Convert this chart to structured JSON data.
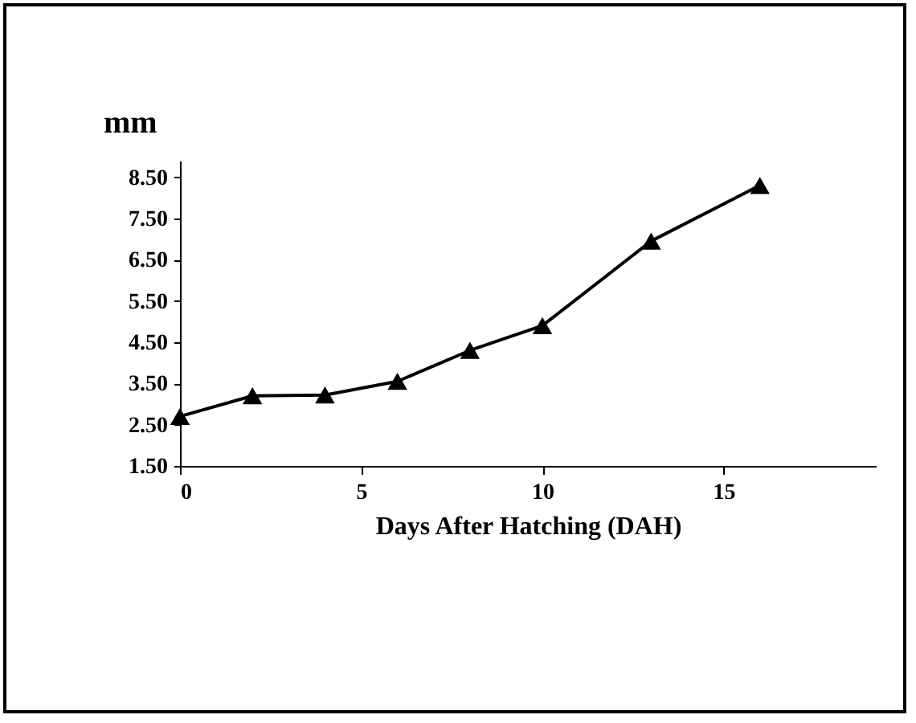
{
  "chart_data": {
    "type": "line",
    "ylabel": "mm",
    "xlabel": "Days After Hatching (DAH)",
    "x": [
      0,
      2,
      4,
      6,
      8,
      10,
      13,
      16
    ],
    "series": [
      {
        "color": "#000000",
        "values": [
          2.7,
          3.2,
          3.22,
          3.55,
          4.3,
          4.9,
          6.95,
          8.3
        ]
      }
    ],
    "xlim": [
      0,
      19.2
    ],
    "xticks": [
      0,
      5,
      10,
      15
    ],
    "ylim": [
      1.5,
      8.9
    ],
    "yticks": [
      {
        "value": 1.5,
        "label": "1.50"
      },
      {
        "value": 2.5,
        "label": "2.50"
      },
      {
        "value": 3.5,
        "label": "3.50"
      },
      {
        "value": 4.5,
        "label": "4.50"
      },
      {
        "value": 5.5,
        "label": "5.50"
      },
      {
        "value": 6.5,
        "label": "6.50"
      },
      {
        "value": 7.5,
        "label": "7.50"
      },
      {
        "value": 8.5,
        "label": "8.50"
      }
    ],
    "grid": false,
    "marker": "triangle",
    "line_style": "solid",
    "legend": false
  }
}
